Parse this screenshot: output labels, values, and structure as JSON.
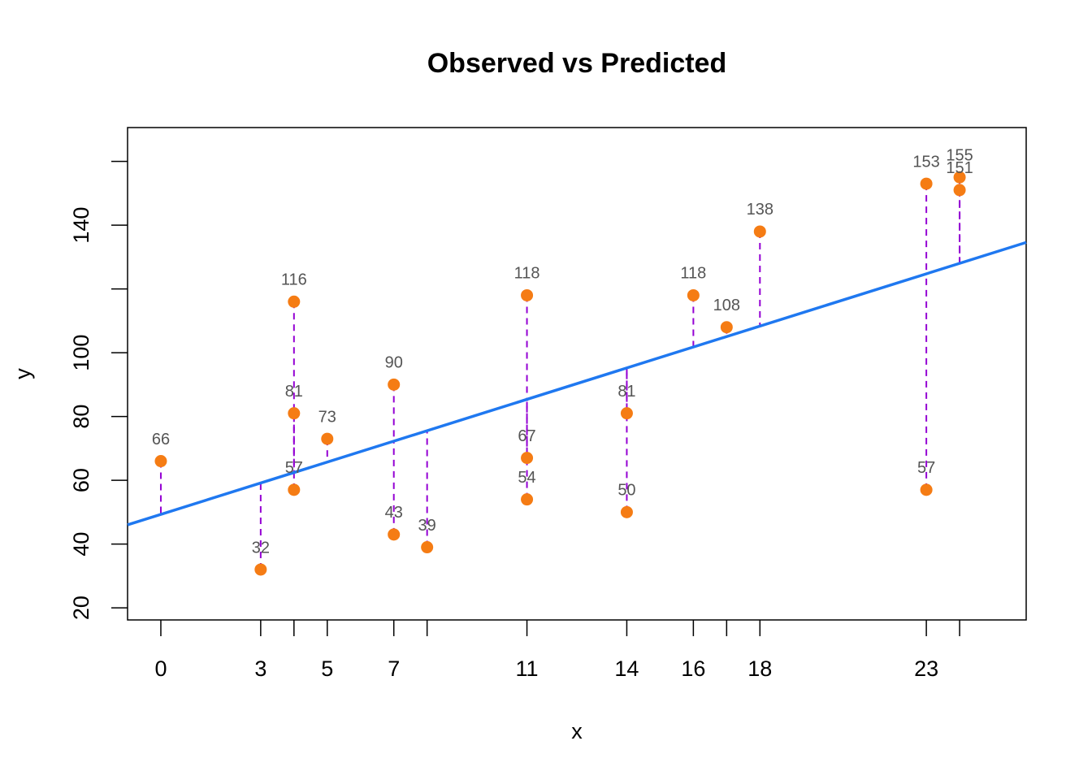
{
  "chart_data": {
    "type": "scatter",
    "title": "Observed vs Predicted",
    "x_label": "x",
    "y_label": "y",
    "x": [
      0,
      3,
      4,
      4,
      4,
      5,
      7,
      7,
      8,
      11,
      11,
      11,
      14,
      14,
      16,
      17,
      18,
      23,
      23,
      24,
      24
    ],
    "values": [
      66,
      32,
      116,
      81,
      57,
      73,
      90,
      43,
      39,
      118,
      67,
      54,
      81,
      50,
      118,
      108,
      138,
      153,
      57,
      155,
      151
    ],
    "color": "#f57c14",
    "line_color": "#1f78f0",
    "residual_color": "#9400d3",
    "fit": {
      "intercept": 49.3,
      "slope": 3.28
    },
    "xlim": [
      -1,
      26
    ],
    "ylim": [
      16.2,
      170.6
    ],
    "xticks": [
      0,
      3,
      {
        "value": 4,
        "label": null
      },
      5,
      7,
      {
        "value": 8,
        "label": null
      },
      11,
      14,
      16,
      {
        "value": 17,
        "label": null
      },
      18,
      23,
      {
        "value": 24,
        "label": null
      }
    ],
    "yticks": [
      20,
      40,
      60,
      80,
      100,
      {
        "value": 120,
        "label": null
      },
      140,
      {
        "value": 160,
        "label": null
      }
    ]
  }
}
